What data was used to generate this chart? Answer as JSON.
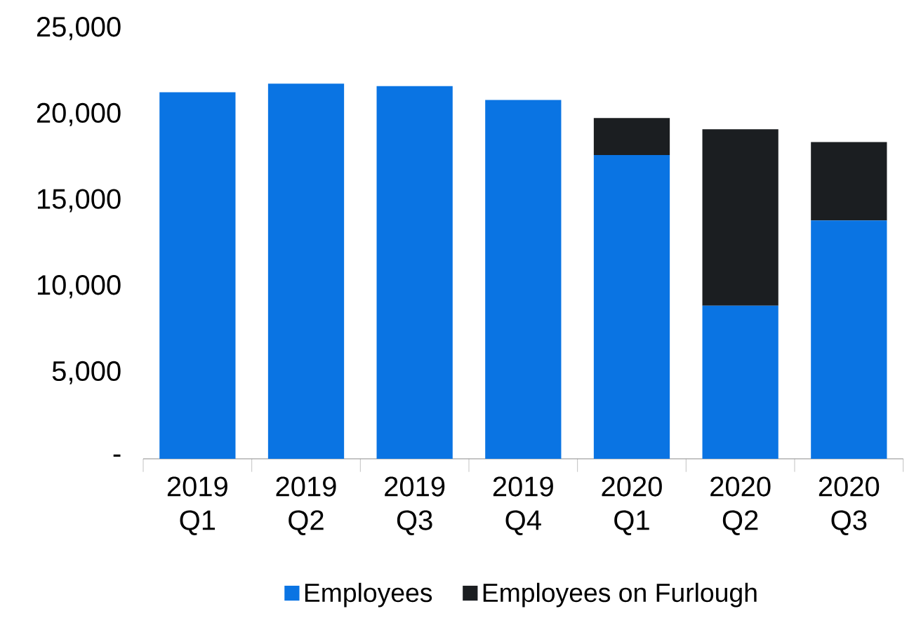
{
  "chart_data": {
    "type": "bar",
    "stacked": true,
    "categories": [
      "2019 Q1",
      "2019 Q2",
      "2019 Q3",
      "2019 Q4",
      "2020 Q1",
      "2020 Q2",
      "2020 Q3"
    ],
    "series": [
      {
        "name": "Employees",
        "color": "#0a74e3",
        "values": [
          21300,
          21800,
          21650,
          20850,
          17650,
          8900,
          13850
        ]
      },
      {
        "name": "Employees on Furlough",
        "color": "#1b1e21",
        "values": [
          null,
          null,
          null,
          null,
          2150,
          10250,
          4550
        ]
      }
    ],
    "ylim": [
      0,
      25000
    ],
    "yticks": [
      {
        "value": 0,
        "label": "-"
      },
      {
        "value": 5000,
        "label": "5,000"
      },
      {
        "value": 10000,
        "label": "10,000"
      },
      {
        "value": 15000,
        "label": "15,000"
      },
      {
        "value": 20000,
        "label": "20,000"
      },
      {
        "value": 25000,
        "label": "25,000"
      }
    ],
    "legend": "bottom"
  }
}
